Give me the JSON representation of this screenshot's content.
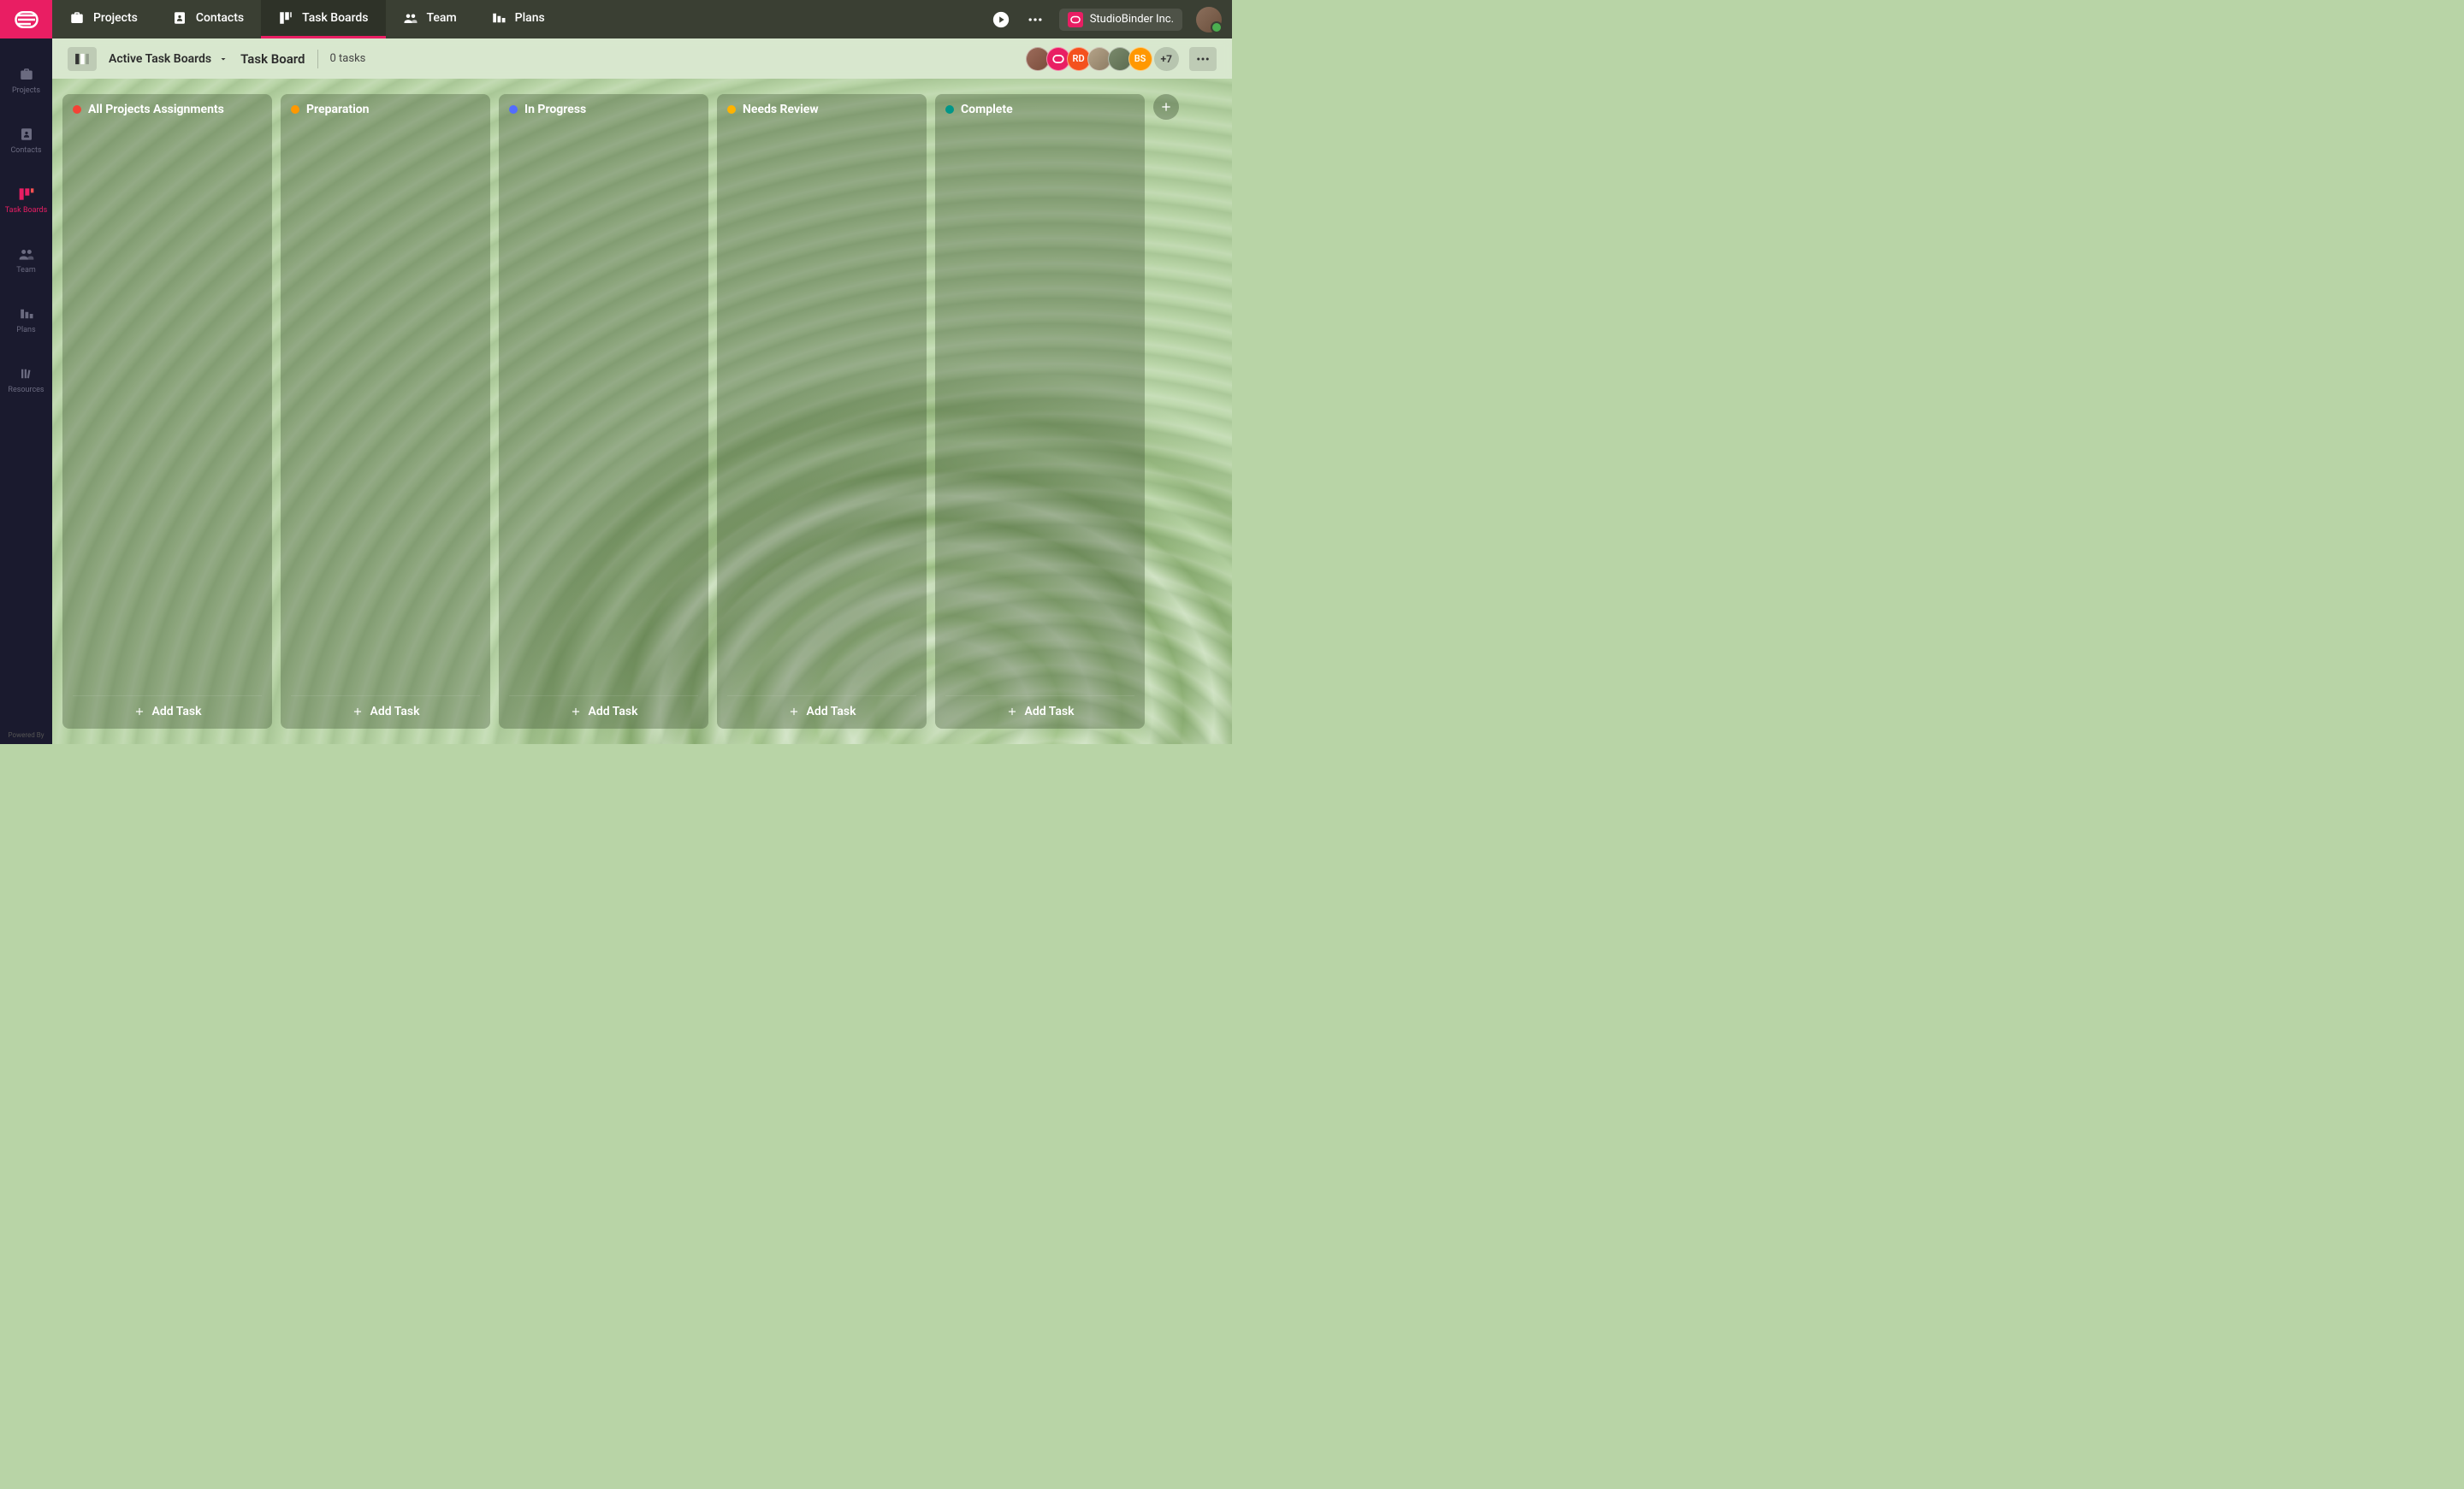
{
  "colors": {
    "brand_pink": "#e91e63",
    "sidebar_bg": "#1a1a2e",
    "topbar_bg": "#3a3f33",
    "bg_green": "#b8d4a6"
  },
  "sidebar": {
    "items": [
      {
        "label": "Projects",
        "icon": "briefcase-icon",
        "active": false
      },
      {
        "label": "Contacts",
        "icon": "contact-icon",
        "active": false
      },
      {
        "label": "Task Boards",
        "icon": "board-icon",
        "active": true
      },
      {
        "label": "Team",
        "icon": "team-icon",
        "active": false
      },
      {
        "label": "Plans",
        "icon": "plans-icon",
        "active": false
      },
      {
        "label": "Resources",
        "icon": "resources-icon",
        "active": false
      }
    ],
    "footer_text": "Powered By"
  },
  "topnav": {
    "items": [
      {
        "label": "Projects",
        "icon": "briefcase-icon",
        "active": false
      },
      {
        "label": "Contacts",
        "icon": "contact-icon",
        "active": false
      },
      {
        "label": "Task Boards",
        "icon": "board-icon",
        "active": true
      },
      {
        "label": "Team",
        "icon": "team-icon",
        "active": false
      },
      {
        "label": "Plans",
        "icon": "plans-icon",
        "active": false
      }
    ]
  },
  "header": {
    "org_name": "StudioBinder Inc."
  },
  "subbar": {
    "selector_label": "Active Task Boards",
    "board_title": "Task Board",
    "task_count_label": "0 tasks",
    "avatars": [
      {
        "type": "photo",
        "bg": "linear-gradient(135deg,#9c6b5a,#7a4d3c)"
      },
      {
        "type": "brand",
        "bg": "#e91e63"
      },
      {
        "type": "initials",
        "text": "RD",
        "bg": "#f4511e"
      },
      {
        "type": "photo",
        "bg": "linear-gradient(135deg,#b5a389,#8c7c63)"
      },
      {
        "type": "photo",
        "bg": "linear-gradient(135deg,#7a8a6c,#5c6b50)"
      },
      {
        "type": "initials",
        "text": "BS",
        "bg": "#ff9800"
      }
    ],
    "more_count": "+7"
  },
  "board": {
    "add_task_label": "Add Task",
    "columns": [
      {
        "title": "All Projects Assignments",
        "dot_color": "#f44336"
      },
      {
        "title": "Preparation",
        "dot_color": "#ff9800"
      },
      {
        "title": "In Progress",
        "dot_color": "#536dfe"
      },
      {
        "title": "Needs Review",
        "dot_color": "#ffb300"
      },
      {
        "title": "Complete",
        "dot_color": "#009688"
      }
    ]
  }
}
